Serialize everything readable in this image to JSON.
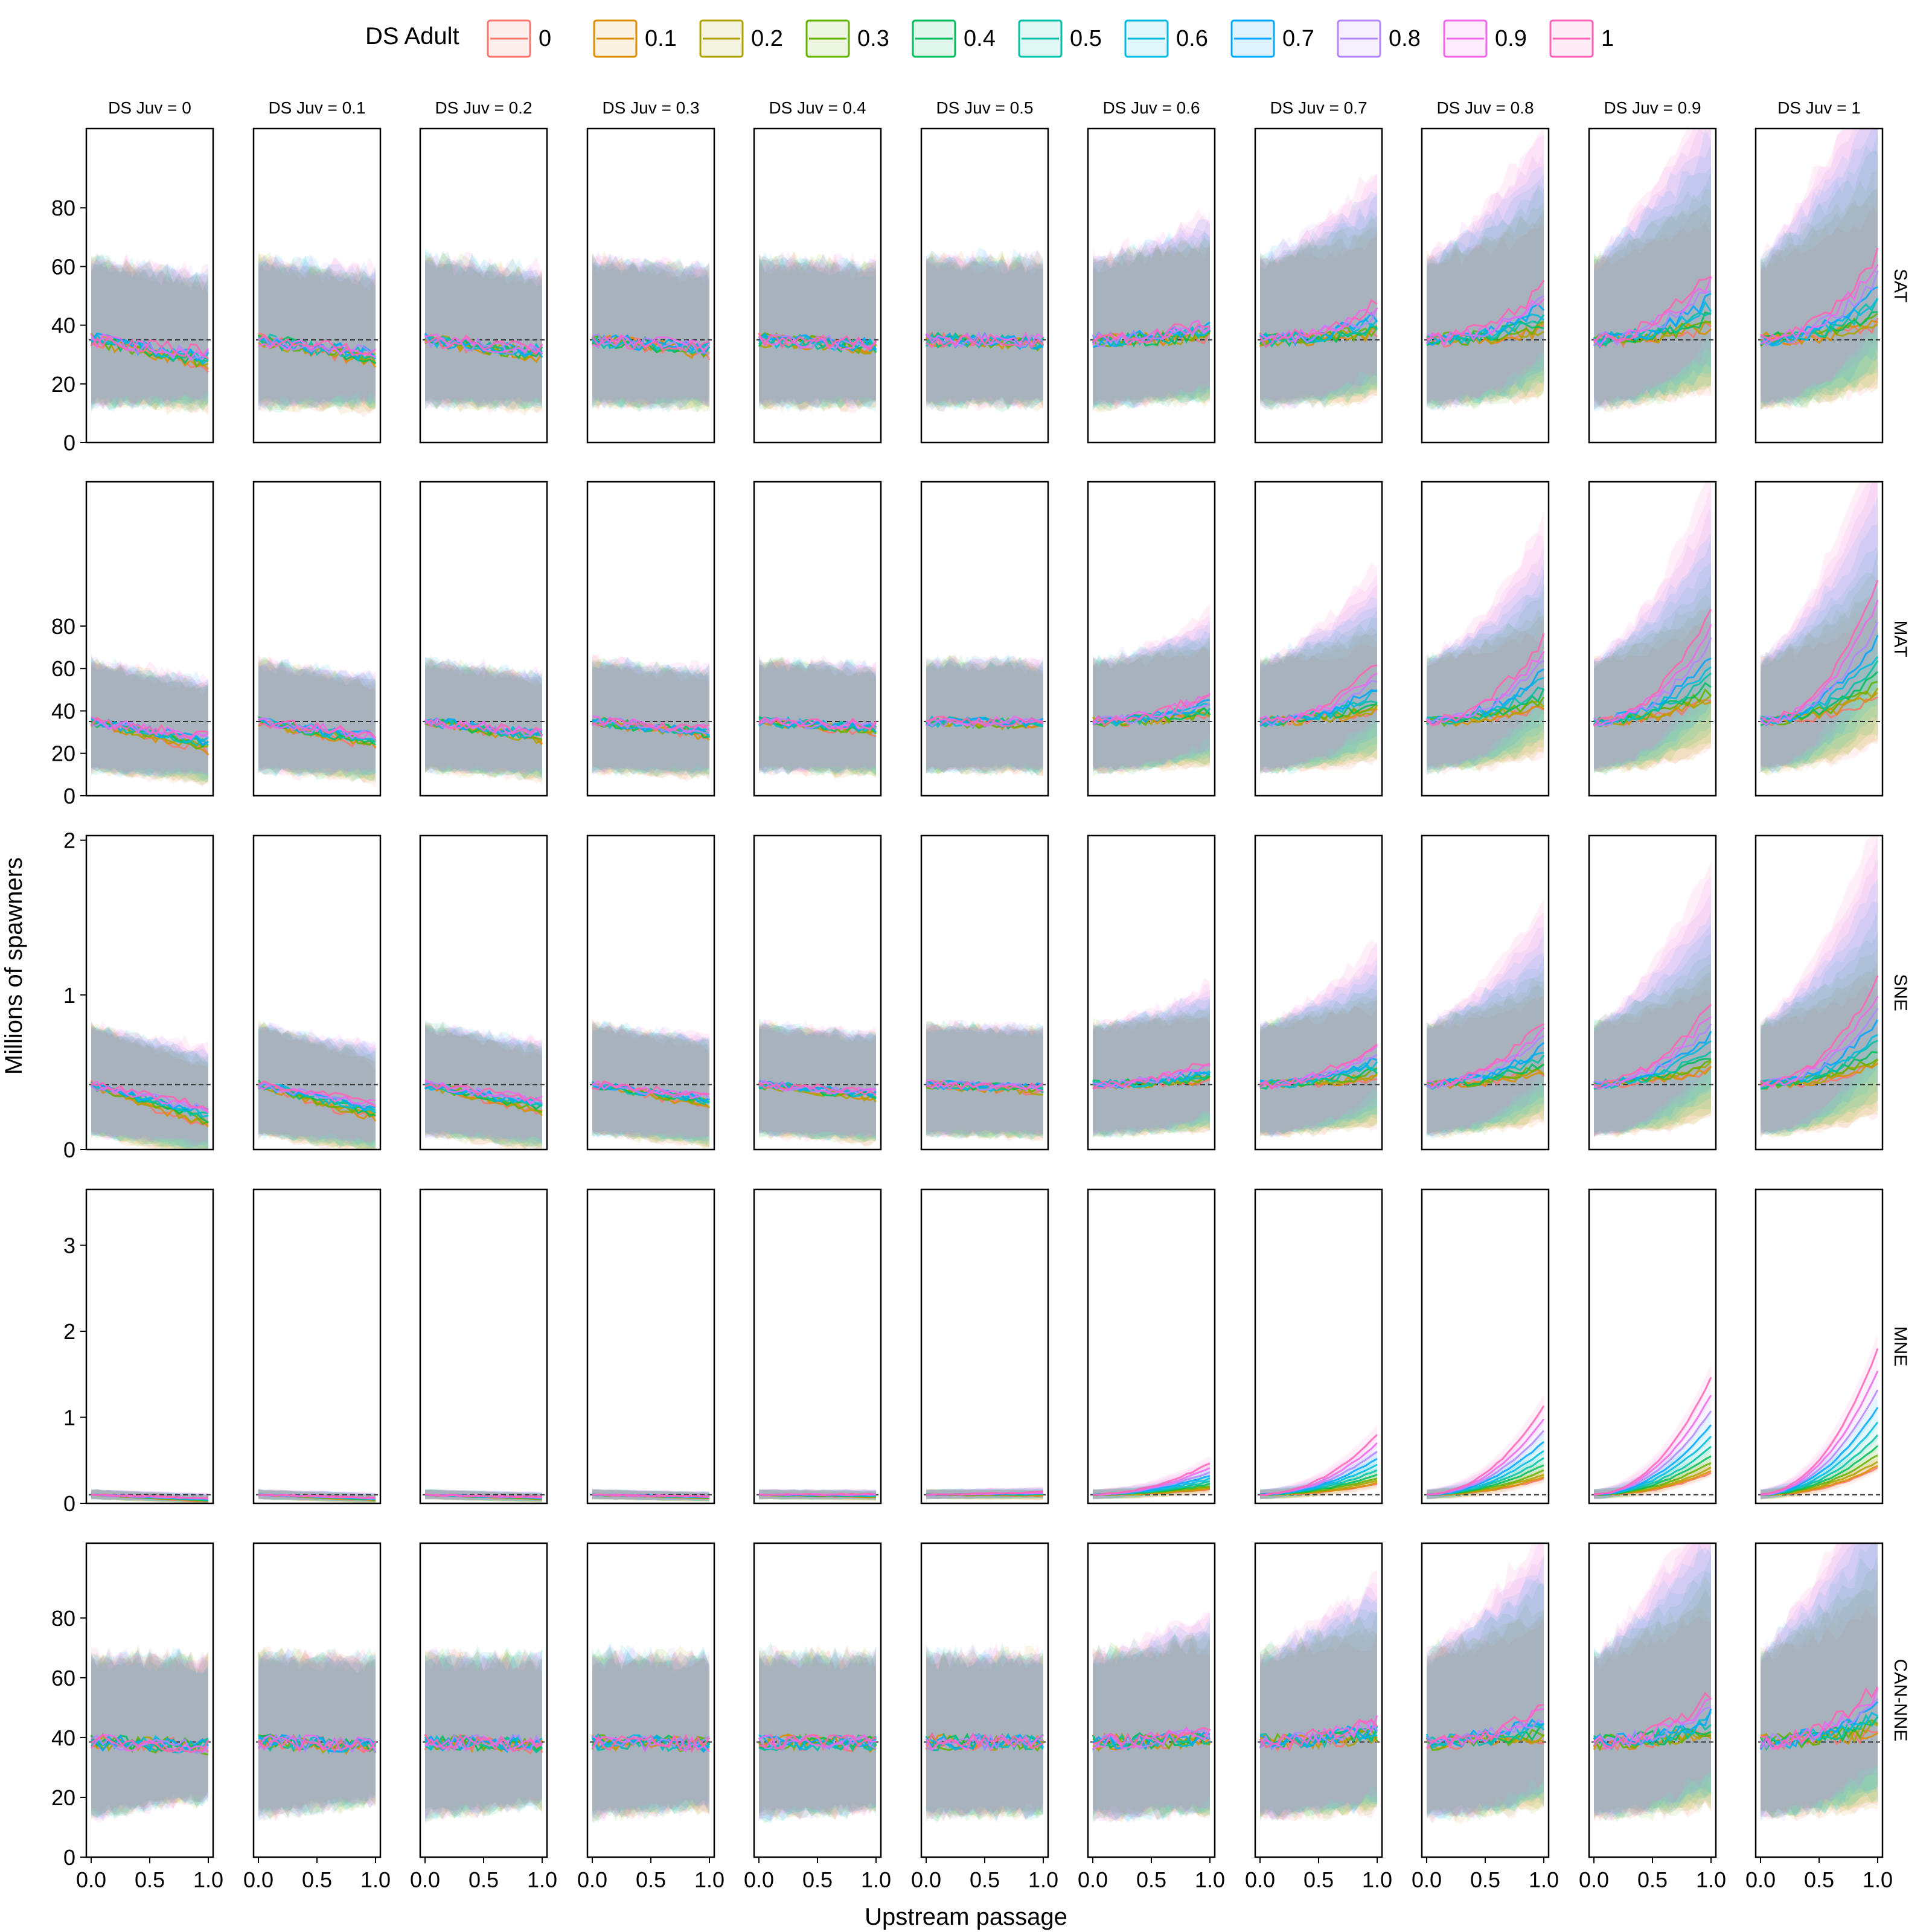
{
  "legend": {
    "title": "DS Adult",
    "items": [
      "0",
      "0.1",
      "0.2",
      "0.3",
      "0.4",
      "0.5",
      "0.6",
      "0.7",
      "0.8",
      "0.9",
      "1"
    ],
    "colors": [
      "#F8766D",
      "#DB8E00",
      "#AEA200",
      "#64B200",
      "#00BD5C",
      "#00C1A7",
      "#00BADE",
      "#00A6FF",
      "#B385FF",
      "#EF67EB",
      "#FF63B6"
    ],
    "placement": "top"
  },
  "chart_data": {
    "type": "line",
    "facet_cols": [
      "DS Juv = 0",
      "DS Juv = 0.1",
      "DS Juv = 0.2",
      "DS Juv = 0.3",
      "DS Juv = 0.4",
      "DS Juv = 0.5",
      "DS Juv = 0.6",
      "DS Juv = 0.7",
      "DS Juv = 0.8",
      "DS Juv = 0.9",
      "DS Juv = 1"
    ],
    "ds_juv_values": [
      0,
      0.1,
      0.2,
      0.3,
      0.4,
      0.5,
      0.6,
      0.7,
      0.8,
      0.9,
      1
    ],
    "xlabel": "Upstream passage",
    "ylabel": "Millions of spawners",
    "x_ticks": [
      "0.0",
      "0.5",
      "1.0"
    ],
    "x_tick_values": [
      0,
      0.5,
      1
    ],
    "xlim": [
      0,
      1
    ],
    "grid": false,
    "series_names": [
      "0",
      "0.1",
      "0.2",
      "0.3",
      "0.4",
      "0.5",
      "0.6",
      "0.7",
      "0.8",
      "0.9",
      "1"
    ],
    "ds_adult_values": [
      0,
      0.1,
      0.2,
      0.3,
      0.4,
      0.5,
      0.6,
      0.7,
      0.8,
      0.9,
      1
    ],
    "rows": [
      {
        "label": "SAT",
        "ylim": [
          0,
          107
        ],
        "y_ticks": [
          0,
          20,
          40,
          60,
          80
        ],
        "baseline": 35,
        "lo": 13,
        "hi": 62,
        "decline": 9,
        "rise": 22,
        "x0_value": 35
      },
      {
        "label": "MAT",
        "ylim": [
          0,
          148
        ],
        "y_ticks": [
          0,
          20,
          40,
          60,
          80
        ],
        "baseline": 35,
        "lo": 12,
        "hi": 63,
        "decline": 14,
        "rise": 48,
        "x0_value": 35
      },
      {
        "label": "SNE",
        "ylim": [
          0,
          2.03
        ],
        "y_ticks": [
          0,
          1,
          2
        ],
        "baseline": 0.42,
        "lo": 0.1,
        "hi": 0.8,
        "decline": 0.28,
        "rise": 0.5,
        "x0_value": 0.42
      },
      {
        "label": "MNE",
        "ylim": [
          0,
          3.65
        ],
        "y_ticks": [
          0,
          1,
          2,
          3
        ],
        "baseline": 0.1,
        "lo": 0.05,
        "hi": 0.16,
        "decline": 0.08,
        "rise": 1.25,
        "x0_value": 0.1
      },
      {
        "label": "CAN-NNE",
        "ylim": [
          0,
          105
        ],
        "y_ticks": [
          0,
          20,
          40,
          60,
          80
        ],
        "baseline": 38.5,
        "lo": 14,
        "hi": 67,
        "decline": 2,
        "rise": 14,
        "x0_value": 38.5
      }
    ]
  }
}
